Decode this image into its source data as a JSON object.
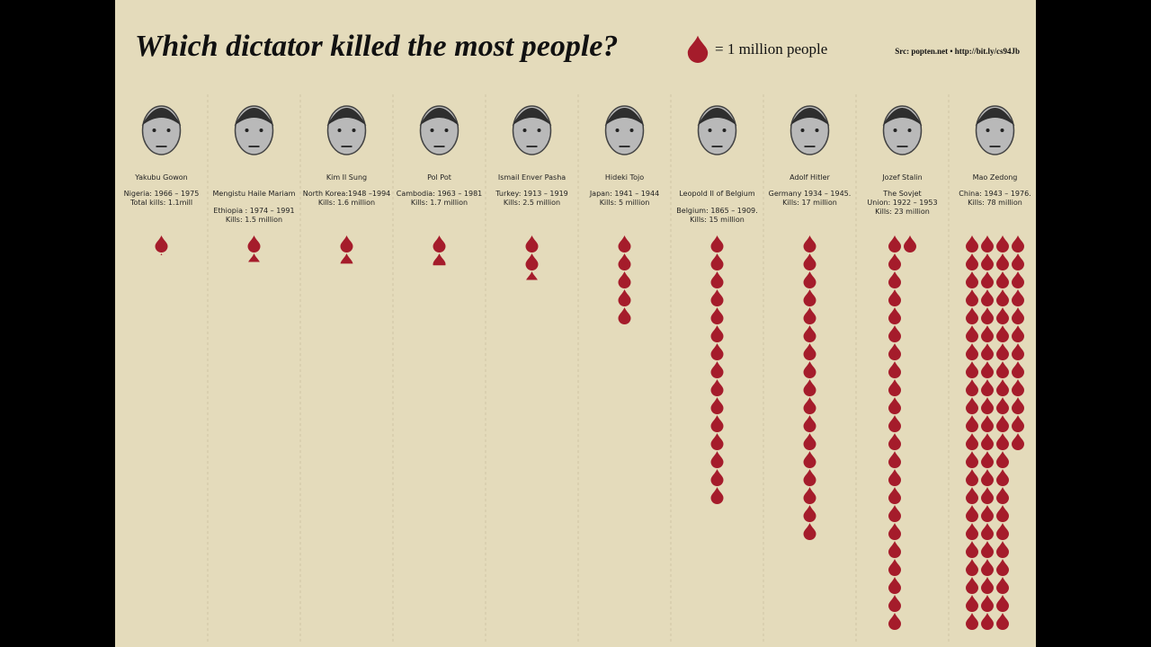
{
  "chart_data": {
    "type": "pictogram",
    "title": "Which dictator killed the most people?",
    "legend_label": "= 1 million people",
    "source": "Src: popten.net • http://bit.ly/cs94Jb",
    "color": "#a51c2b",
    "categories": [
      "Yakubu Gowon",
      "Mengistu Haile Mariam",
      "Kim Il Sung",
      "Pol Pot",
      "Ismail Enver Pasha",
      "Hideki Tojo",
      "Leopold II of Belgium",
      "Adolf Hitler",
      "Jozef Stalin",
      "Mao Zedong"
    ],
    "periods": [
      [
        "Nigeria: 1966 – 1975"
      ],
      [
        "Ethiopia : 1974 – 1991"
      ],
      [
        "North Korea:1948 –1994"
      ],
      [
        "Cambodia: 1963 – 1981"
      ],
      [
        "Turkey: 1913 – 1919"
      ],
      [
        "Japan: 1941 – 1944"
      ],
      [
        "Belgium: 1865 – 1909."
      ],
      [
        "Germany 1934 – 1945."
      ],
      [
        "The Sovjet",
        "Union: 1922 – 1953"
      ],
      [
        "China: 1943 – 1976."
      ]
    ],
    "values": [
      1.1,
      1.5,
      1.6,
      1.7,
      2.5,
      5,
      15,
      17,
      23,
      78
    ],
    "value_labels": [
      "Total kills: 1.1mill",
      "Kills: 1.5 million",
      "Kills: 1.6 million",
      "Kills: 1.7 million",
      "Kills: 2.5 million",
      "Kills: 5 million",
      "Kills: 15 million",
      "Kills: 17 million",
      "Kills: 23 million",
      "Kills: 78 million"
    ]
  }
}
